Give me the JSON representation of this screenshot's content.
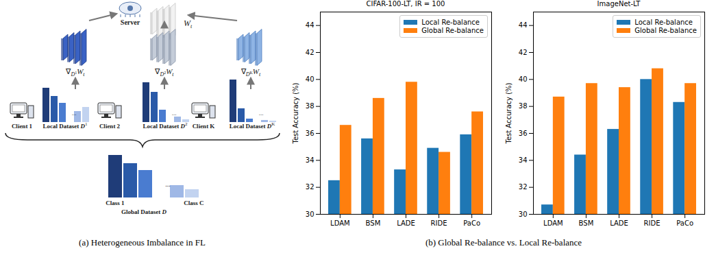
{
  "figure": {
    "diagram": {
      "server": "Server",
      "global_model": {
        "text": "W",
        "sub": "t"
      },
      "gradients": [
        {
          "text": "∇",
          "sub": "D",
          "sup": "1",
          "var": "W",
          "var_sub": "t"
        },
        {
          "text": "∇",
          "sub": "D",
          "sup": "2",
          "var": "W",
          "var_sub": "t"
        },
        {
          "text": "∇",
          "sub": "D",
          "sup": "K",
          "var": "W",
          "var_sub": "t"
        }
      ],
      "clients": [
        {
          "name": "Client 1",
          "dataset": {
            "text": "Local Dataset ",
            "var": "D",
            "sup": "1"
          }
        },
        {
          "name": "Client 2",
          "dataset": {
            "text": "Local Dataset ",
            "var": "D",
            "sup": "2"
          }
        },
        {
          "name": "Client K",
          "dataset": {
            "text": "Local Dataset ",
            "var": "D",
            "sup": "K"
          }
        }
      ],
      "ellipsis": "...",
      "global_dataset": {
        "text": "Global Dataset ",
        "var": "D",
        "first_class": "Class 1",
        "last_class": "Class C"
      }
    },
    "captions": [
      "(a) Heterogeneous Imbalance in FL",
      "(b) Global Re-balance vs. Local Re-balance"
    ]
  },
  "chart_data": [
    {
      "type": "bar",
      "title": "CIFAR-100-LT, IR = 100",
      "ylabel": "Test Accuracy (%)",
      "categories": [
        "LDAM",
        "BSM",
        "LADE",
        "RIDE",
        "PaCo"
      ],
      "series": [
        {
          "name": "Local Re-balance",
          "color": "#1f77b4",
          "values": [
            32.5,
            35.6,
            33.3,
            34.9,
            35.9
          ]
        },
        {
          "name": "Global Re-balance",
          "color": "#ff7f0e",
          "values": [
            36.6,
            38.6,
            39.8,
            34.6,
            37.6
          ]
        }
      ],
      "ylim": [
        30,
        45
      ],
      "yticks": [
        30,
        32,
        34,
        36,
        38,
        40,
        42,
        44
      ],
      "grid": false,
      "legend": "upper right"
    },
    {
      "type": "bar",
      "title": "ImageNet-LT",
      "ylabel": "Test Accuracy (%)",
      "categories": [
        "LDAM",
        "BSM",
        "LADE",
        "RIDE",
        "PaCo"
      ],
      "series": [
        {
          "name": "Local Re-balance",
          "color": "#1f77b4",
          "values": [
            30.7,
            34.4,
            36.3,
            40.0,
            38.3
          ]
        },
        {
          "name": "Global Re-balance",
          "color": "#ff7f0e",
          "values": [
            38.7,
            39.7,
            39.4,
            40.8,
            39.7
          ]
        }
      ],
      "ylim": [
        30,
        45
      ],
      "yticks": [
        30,
        32,
        34,
        36,
        38,
        40,
        42,
        44
      ],
      "grid": false,
      "legend": "upper right"
    }
  ]
}
